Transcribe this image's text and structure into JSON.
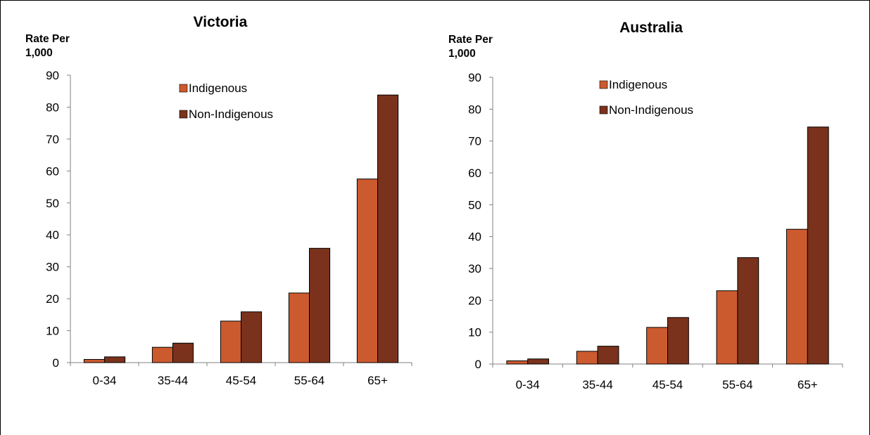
{
  "chart_data": [
    {
      "type": "bar",
      "title": "Victoria",
      "ylabel": [
        "Rate Per",
        "1,000"
      ],
      "xlabel": "",
      "categories": [
        "0-34",
        "35-44",
        "45-54",
        "55-64",
        "65+"
      ],
      "series": [
        {
          "name": "Indigenous",
          "color": "#cc5a2f",
          "values": [
            1.0,
            4.8,
            13.0,
            21.8,
            57.5
          ]
        },
        {
          "name": "Non-Indigenous",
          "color": "#7a321c",
          "values": [
            1.8,
            6.1,
            15.9,
            35.8,
            83.8
          ]
        }
      ],
      "ylim": [
        0,
        90
      ],
      "yticks": [
        "0",
        "10",
        "20",
        "30",
        "40",
        "50",
        "60",
        "70",
        "80",
        "90"
      ],
      "legend": "top-center",
      "grid": false
    },
    {
      "type": "bar",
      "title": "Australia",
      "ylabel": [
        "Rate Per",
        "1,000"
      ],
      "xlabel": "",
      "categories": [
        "0-34",
        "35-44",
        "45-54",
        "55-64",
        "65+"
      ],
      "series": [
        {
          "name": "Indigenous",
          "color": "#cc5a2f",
          "values": [
            1.0,
            4.0,
            11.5,
            23.0,
            42.3
          ]
        },
        {
          "name": "Non-Indigenous",
          "color": "#7a321c",
          "values": [
            1.6,
            5.6,
            14.6,
            33.4,
            74.4
          ]
        }
      ],
      "ylim": [
        0,
        90
      ],
      "yticks": [
        "0",
        "10",
        "20",
        "30",
        "40",
        "50",
        "60",
        "70",
        "80",
        "90"
      ],
      "legend": "top-center",
      "grid": false
    }
  ]
}
